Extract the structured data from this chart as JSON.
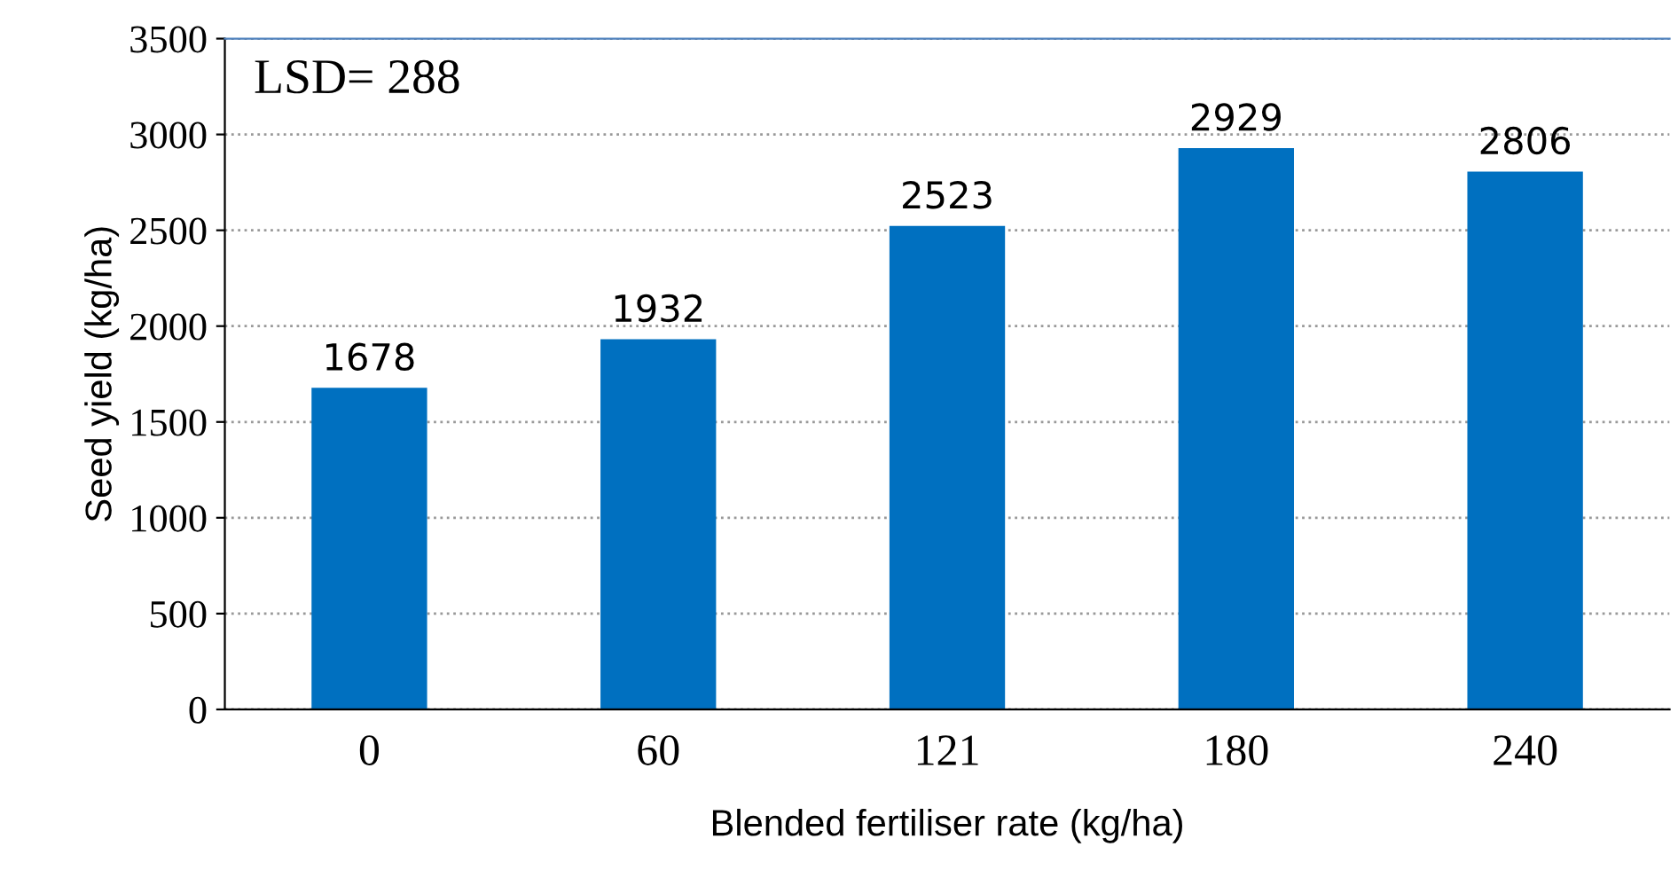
{
  "chart_data": {
    "type": "bar",
    "xlabel": "Blended fertiliser rate (kg/ha)",
    "ylabel": "Seed yield (kg/ha)",
    "categories": [
      "0",
      "60",
      "121",
      "180",
      "240"
    ],
    "values": [
      1678,
      1932,
      2523,
      2929,
      2806
    ],
    "color": "#0070c0",
    "ylim": [
      0,
      3500
    ],
    "yticks": [
      0,
      500,
      1000,
      1500,
      2000,
      2500,
      3000,
      3500
    ],
    "grid": "y",
    "data_labels": true,
    "annotations": [
      "LSD= 288"
    ]
  }
}
